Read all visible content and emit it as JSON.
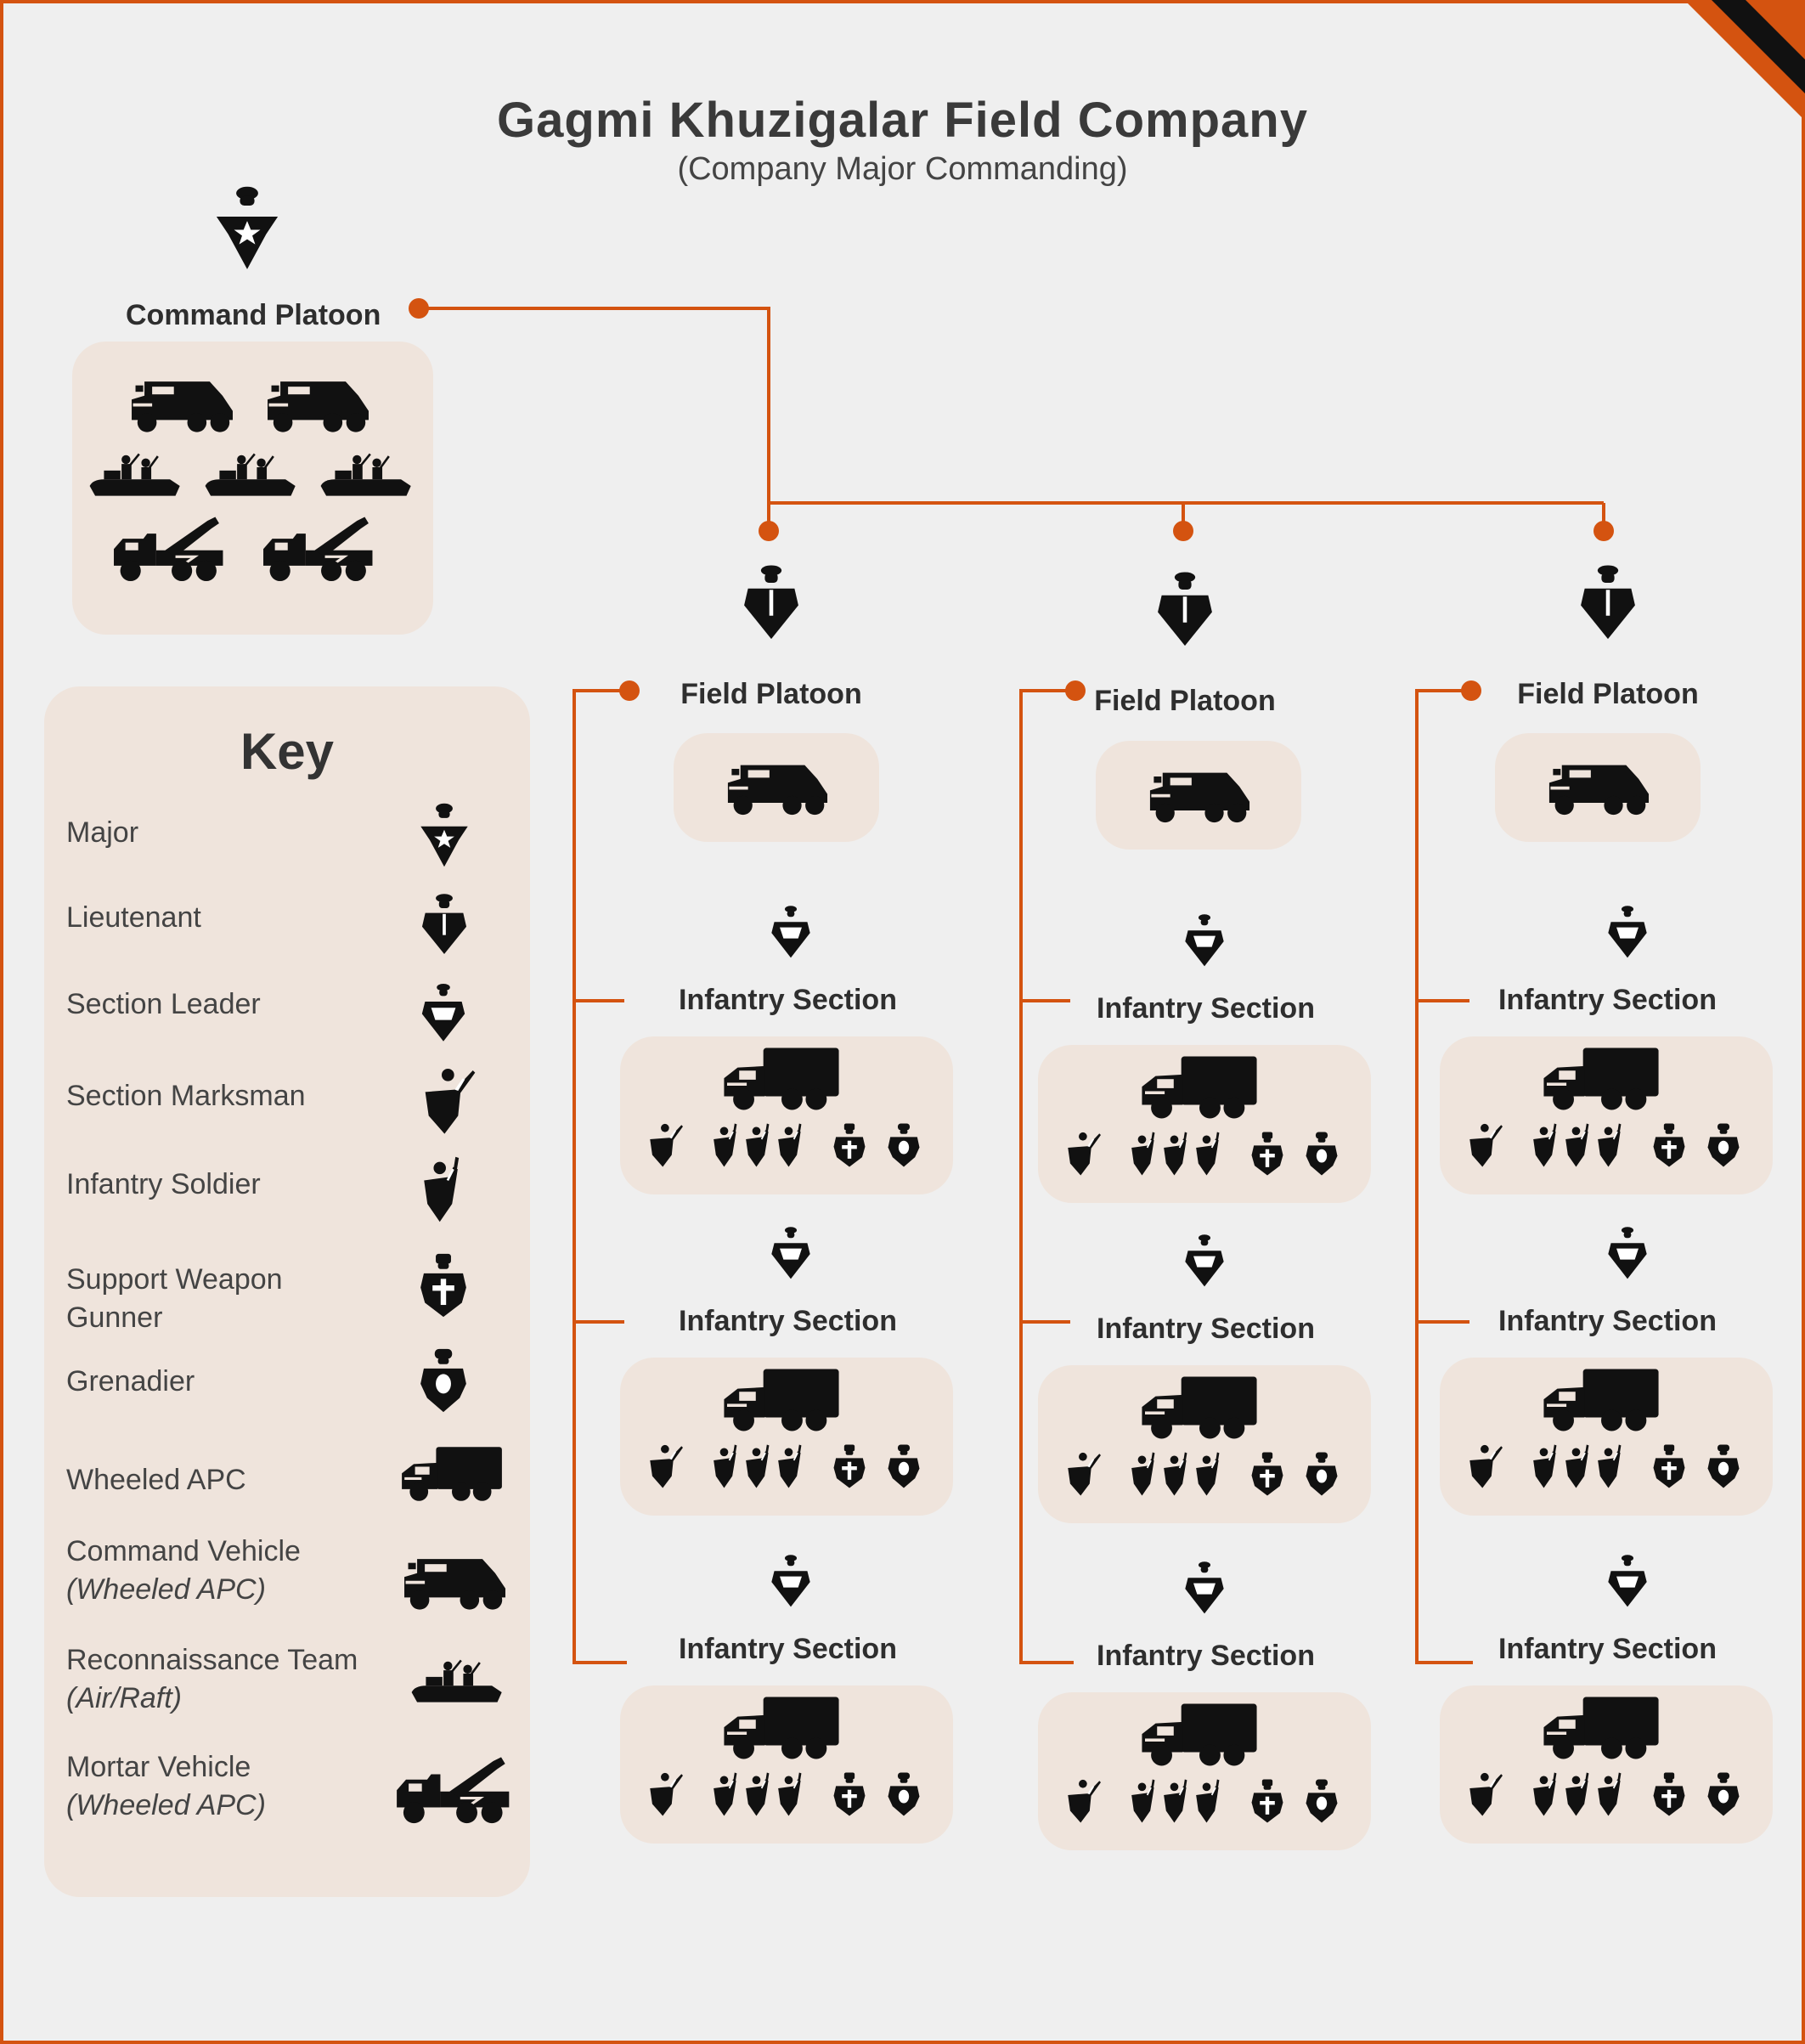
{
  "title": "Gagmi Khuzigalar Field Company",
  "subtitle": "(Company Major Commanding)",
  "colors": {
    "accent": "#d45310",
    "box": "#efe4dc",
    "background": "#efefef",
    "icon": "#111111"
  },
  "command_platoon": {
    "label": "Command Platoon",
    "leader_icon": "major-icon",
    "units": [
      "command-vehicle-icon",
      "command-vehicle-icon",
      "recon-team-icon",
      "recon-team-icon",
      "recon-team-icon",
      "mortar-vehicle-icon",
      "mortar-vehicle-icon"
    ]
  },
  "platoons": [
    {
      "label": "Field Platoon",
      "leader_icon": "lieutenant-icon",
      "vehicle_icon": "command-vehicle-icon",
      "sections": [
        {
          "label": "Infantry Section"
        },
        {
          "label": "Infantry Section"
        },
        {
          "label": "Infantry Section"
        }
      ]
    },
    {
      "label": "Field Platoon",
      "leader_icon": "lieutenant-icon",
      "vehicle_icon": "command-vehicle-icon",
      "sections": [
        {
          "label": "Infantry Section"
        },
        {
          "label": "Infantry Section"
        },
        {
          "label": "Infantry Section"
        }
      ]
    },
    {
      "label": "Field Platoon",
      "leader_icon": "lieutenant-icon",
      "vehicle_icon": "command-vehicle-icon",
      "sections": [
        {
          "label": "Infantry Section"
        },
        {
          "label": "Infantry Section"
        },
        {
          "label": "Infantry Section"
        }
      ]
    }
  ],
  "section_composition": [
    "section-leader-icon",
    "wheeled-apc-icon",
    "section-marksman-icon",
    "infantry-soldier-icon",
    "infantry-soldier-icon",
    "infantry-soldier-icon",
    "support-weapon-gunner-icon",
    "grenadier-icon"
  ],
  "key": {
    "title": "Key",
    "items": [
      {
        "label": "Major",
        "sub": "",
        "icon": "major-icon"
      },
      {
        "label": "Lieutenant",
        "sub": "",
        "icon": "lieutenant-icon"
      },
      {
        "label": "Section Leader",
        "sub": "",
        "icon": "section-leader-icon"
      },
      {
        "label": "Section Marksman",
        "sub": "",
        "icon": "section-marksman-icon"
      },
      {
        "label": "Infantry Soldier",
        "sub": "",
        "icon": "infantry-soldier-icon"
      },
      {
        "label": "Support Weapon",
        "label2": "Gunner",
        "sub": "",
        "icon": "support-weapon-gunner-icon"
      },
      {
        "label": "Grenadier",
        "sub": "",
        "icon": "grenadier-icon"
      },
      {
        "label": "Wheeled APC",
        "sub": "",
        "icon": "wheeled-apc-icon"
      },
      {
        "label": "Command Vehicle",
        "sub": "(Wheeled APC)",
        "icon": "command-vehicle-icon"
      },
      {
        "label": "Reconnaissance Team",
        "sub": "(Air/Raft)",
        "icon": "recon-team-icon"
      },
      {
        "label": "Mortar Vehicle",
        "sub": "(Wheeled APC)",
        "icon": "mortar-vehicle-icon"
      }
    ]
  }
}
